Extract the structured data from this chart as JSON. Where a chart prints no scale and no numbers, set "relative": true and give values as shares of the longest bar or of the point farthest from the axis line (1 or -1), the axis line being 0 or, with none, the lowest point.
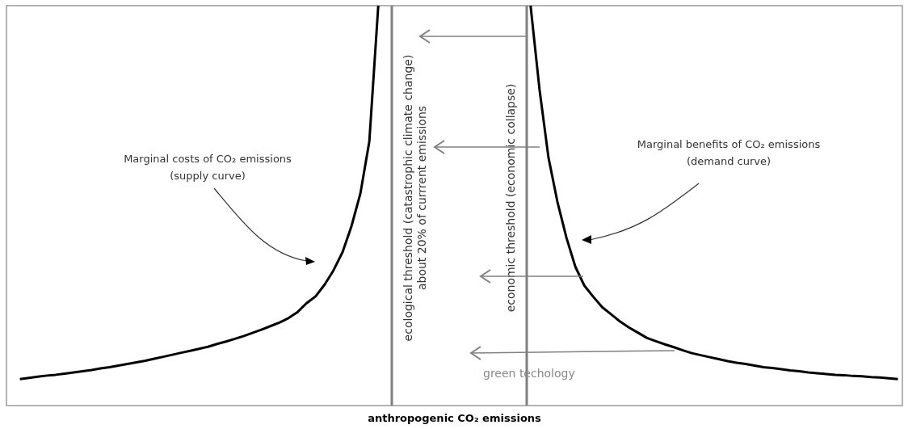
{
  "chart_data": {
    "type": "line",
    "relative": true,
    "xlabel": "anthropogenic CO₂ emissions",
    "line_style": "solid",
    "categories": [
      null,
      null,
      null,
      null,
      null,
      null,
      null,
      null,
      null,
      null,
      null,
      null,
      null,
      null,
      null,
      null,
      null,
      null,
      null,
      null,
      null,
      null,
      null,
      null,
      null,
      null,
      null,
      null,
      null,
      null,
      null,
      null,
      null,
      null,
      null,
      null,
      null,
      null,
      null,
      null,
      null,
      null,
      null,
      null,
      null,
      null,
      null,
      null,
      null,
      null,
      null,
      null,
      null,
      null,
      null,
      null,
      null,
      null,
      null,
      null,
      null,
      null,
      null,
      null,
      null,
      null,
      null,
      null,
      null,
      null,
      null,
      null,
      null,
      null,
      null,
      null,
      null,
      null,
      null,
      null,
      null,
      null,
      null,
      null,
      null,
      null,
      null,
      null,
      null,
      null,
      null,
      null,
      null,
      null,
      null,
      null,
      null,
      null,
      null,
      null
    ],
    "series": [
      {
        "color": "#000000",
        "values": [
          null,
          0.066,
          0.069,
          0.072,
          0.075,
          0.077,
          0.08,
          0.083,
          0.086,
          0.089,
          0.093,
          0.096,
          0.1,
          0.104,
          0.108,
          0.112,
          0.117,
          0.122,
          0.127,
          0.132,
          0.137,
          0.142,
          0.147,
          0.154,
          0.16,
          0.167,
          0.174,
          0.182,
          0.19,
          0.199,
          0.208,
          0.219,
          0.234,
          0.256,
          0.273,
          0.302,
          0.338,
          0.383,
          0.448,
          0.53,
          0.66,
          1,
          null,
          null,
          null,
          null,
          null,
          null,
          null,
          null,
          null,
          null,
          null,
          null,
          null,
          null,
          null,
          null,
          null,
          null,
          null,
          null,
          null,
          null,
          null,
          null,
          null,
          null,
          null,
          null,
          null,
          null,
          null,
          null,
          null,
          null,
          null,
          null,
          null,
          null,
          null,
          null,
          null,
          null,
          null,
          null,
          null,
          null,
          null,
          null,
          null,
          null,
          null,
          null,
          null,
          null,
          null,
          null,
          null,
          null
        ]
      },
      {
        "color": "#000000",
        "values": [
          null,
          null,
          null,
          null,
          null,
          null,
          null,
          null,
          null,
          null,
          null,
          null,
          null,
          null,
          null,
          null,
          null,
          null,
          null,
          null,
          null,
          null,
          null,
          null,
          null,
          null,
          null,
          null,
          null,
          null,
          null,
          null,
          null,
          null,
          null,
          null,
          null,
          null,
          null,
          null,
          null,
          null,
          null,
          null,
          null,
          null,
          null,
          null,
          null,
          null,
          null,
          null,
          null,
          null,
          null,
          null,
          null,
          null,
          1,
          0.79,
          0.62,
          0.509,
          0.42,
          0.347,
          0.3,
          0.272,
          0.246,
          0.228,
          0.21,
          0.195,
          0.182,
          0.169,
          0.161,
          0.153,
          0.146,
          0.138,
          0.131,
          0.126,
          0.121,
          0.116,
          0.111,
          0.107,
          0.104,
          0.1,
          0.096,
          0.094,
          0.091,
          0.088,
          0.086,
          0.083,
          0.081,
          0.079,
          0.077,
          0.076,
          0.074,
          0.073,
          0.071,
          0.07,
          0.068,
          0.066
        ]
      }
    ],
    "annotations": [
      "Marginal costs of CO₂ emissions\n(supply curve)",
      "Marginal benefits of CO₂ emissions\n(demand curve)",
      "green techology",
      "ecological threshold (catastrophic climate change)\nabout 20% of currrent emissions",
      "economic threshold (economic collapse)"
    ]
  }
}
